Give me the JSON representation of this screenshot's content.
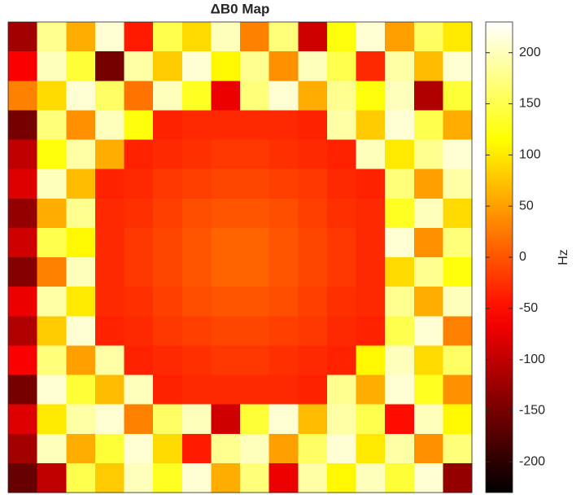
{
  "chart_data": {
    "type": "heatmap",
    "title": "ΔB0 Map",
    "colorbar_label": "Hz",
    "colormap": "hot",
    "clim": [
      -230,
      230
    ],
    "cticks": [
      200,
      150,
      100,
      50,
      0,
      -50,
      -100,
      -150,
      -200
    ],
    "z": [
      [
        -120,
        180,
        60,
        210,
        -40,
        150,
        90,
        200,
        30,
        170,
        -90,
        120,
        210,
        50,
        160,
        100
      ],
      [
        -60,
        200,
        140,
        -150,
        190,
        80,
        210,
        110,
        180,
        40,
        200,
        150,
        -30,
        190,
        70,
        210
      ],
      [
        30,
        90,
        210,
        160,
        20,
        200,
        130,
        -70,
        170,
        210,
        60,
        180,
        120,
        200,
        -110,
        140
      ],
      [
        -150,
        170,
        40,
        200,
        120,
        -35,
        -30,
        -30,
        -30,
        -30,
        -35,
        190,
        80,
        210,
        150,
        60
      ],
      [
        -100,
        120,
        190,
        60,
        -35,
        -30,
        -25,
        -20,
        -20,
        -25,
        -30,
        -35,
        200,
        100,
        180,
        210
      ],
      [
        -80,
        200,
        70,
        -35,
        -30,
        -20,
        -15,
        -10,
        -10,
        -15,
        -20,
        -30,
        -35,
        170,
        50,
        190
      ],
      [
        -130,
        60,
        180,
        -30,
        -25,
        -15,
        -5,
        0,
        0,
        -5,
        -15,
        -25,
        -30,
        130,
        200,
        90
      ],
      [
        -90,
        150,
        110,
        -30,
        -20,
        -10,
        0,
        10,
        10,
        0,
        -10,
        -20,
        -30,
        210,
        40,
        170
      ],
      [
        -140,
        30,
        200,
        -30,
        -20,
        -10,
        0,
        10,
        10,
        0,
        -10,
        -20,
        -30,
        90,
        180,
        120
      ],
      [
        -70,
        190,
        100,
        -30,
        -25,
        -15,
        -5,
        0,
        0,
        -5,
        -15,
        -25,
        -30,
        180,
        60,
        200
      ],
      [
        -110,
        80,
        210,
        -35,
        -30,
        -20,
        -15,
        -10,
        -10,
        -15,
        -20,
        -30,
        -35,
        150,
        210,
        30
      ],
      [
        -60,
        170,
        50,
        190,
        -35,
        -30,
        -25,
        -20,
        -20,
        -25,
        -30,
        -35,
        110,
        200,
        90,
        160
      ],
      [
        -150,
        210,
        140,
        70,
        200,
        -35,
        -30,
        -30,
        -30,
        -30,
        -35,
        180,
        60,
        210,
        130,
        40
      ],
      [
        -80,
        100,
        190,
        210,
        30,
        160,
        200,
        -90,
        140,
        210,
        70,
        190,
        150,
        -50,
        200,
        110
      ],
      [
        -120,
        200,
        60,
        140,
        210,
        90,
        -40,
        180,
        200,
        50,
        160,
        210,
        100,
        190,
        40,
        170
      ],
      [
        -160,
        -100,
        150,
        80,
        200,
        130,
        210,
        60,
        170,
        -70,
        190,
        110,
        200,
        140,
        210,
        -130
      ]
    ]
  }
}
